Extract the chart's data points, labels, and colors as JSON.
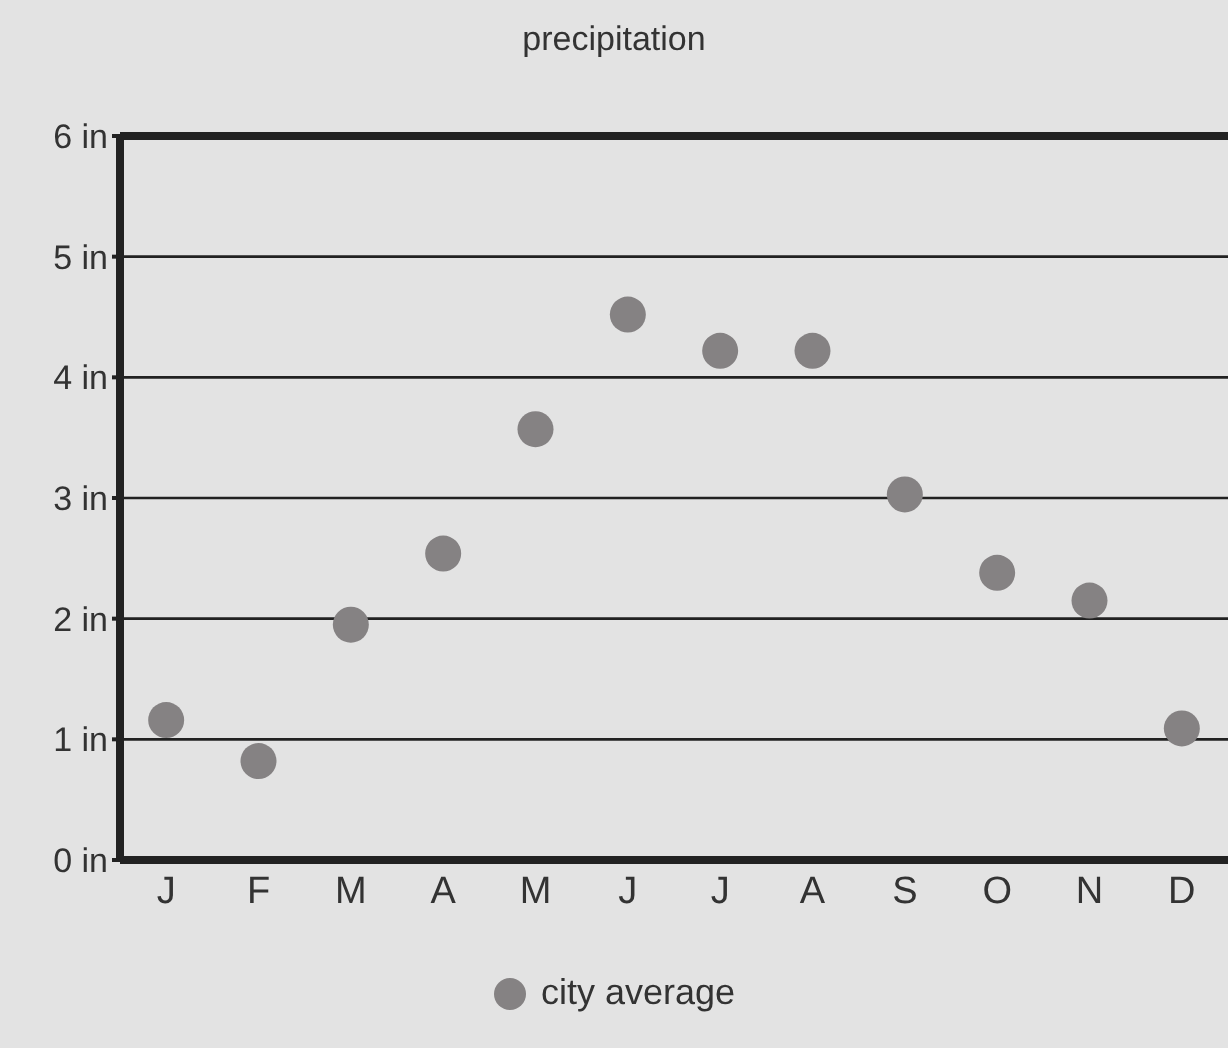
{
  "chart_data": {
    "type": "scatter",
    "title": "precipitation",
    "categories": [
      "J",
      "F",
      "M",
      "A",
      "M",
      "J",
      "J",
      "A",
      "S",
      "O",
      "N",
      "D"
    ],
    "series": [
      {
        "name": "city average",
        "color": "#858283",
        "values": [
          1.16,
          0.82,
          1.95,
          2.54,
          3.57,
          4.52,
          4.22,
          4.22,
          3.03,
          2.38,
          2.15,
          1.09
        ]
      }
    ],
    "ylim": [
      0,
      6
    ],
    "yticks": [
      {
        "value": 0,
        "label": "0 in"
      },
      {
        "value": 1,
        "label": "1 in"
      },
      {
        "value": 2,
        "label": "2 in"
      },
      {
        "value": 3,
        "label": "3 in"
      },
      {
        "value": 4,
        "label": "4 in"
      },
      {
        "value": 5,
        "label": "5 in"
      },
      {
        "value": 6,
        "label": "6 in"
      }
    ],
    "grid": "y",
    "legend": "bottom",
    "marker": "circle"
  }
}
